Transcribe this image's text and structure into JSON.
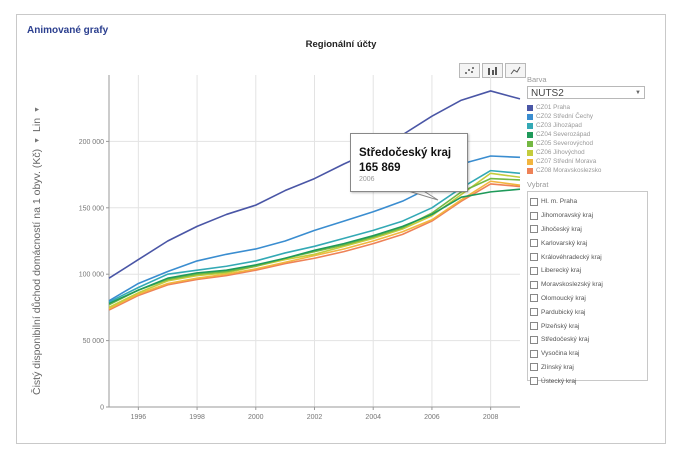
{
  "app_title": "Animované grafy",
  "chart_data": {
    "type": "line",
    "title": "Regionální účty",
    "ylabel": "Čistý disponibilní důchod domácností na 1 obyv. (Kč)",
    "yscale_label": "Lin",
    "xlim": [
      1995,
      2009
    ],
    "ylim": [
      0,
      250000
    ],
    "yticks": [
      0,
      50000,
      100000,
      150000,
      200000
    ],
    "ytick_labels": [
      "0",
      "50 000",
      "100 000",
      "150 000",
      "200 000"
    ],
    "xticks": [
      1996,
      1998,
      2000,
      2002,
      2004,
      2006,
      2008
    ],
    "x": [
      1995,
      1996,
      1997,
      1998,
      1999,
      2000,
      2001,
      2002,
      2003,
      2004,
      2005,
      2006,
      2007,
      2008,
      2009
    ],
    "series": [
      {
        "name": "CZ01 Praha",
        "color": "#4a56a6",
        "values": [
          97000,
          111000,
          125000,
          136000,
          145000,
          152000,
          163000,
          172000,
          183000,
          193000,
          205000,
          219000,
          231000,
          238000,
          232000
        ]
      },
      {
        "name": "CZ02 Střední Čechy",
        "color": "#3a8dd0",
        "values": [
          80000,
          93000,
          102000,
          110000,
          115000,
          119000,
          125000,
          133000,
          140000,
          147000,
          155000,
          166000,
          183000,
          189000,
          188000
        ]
      },
      {
        "name": "CZ03 Jihozápad",
        "color": "#33a9b5",
        "values": [
          79000,
          90000,
          100000,
          103000,
          106000,
          110000,
          116000,
          121000,
          127000,
          133000,
          140000,
          150000,
          165000,
          178000,
          176000
        ]
      },
      {
        "name": "CZ04 Severozápad",
        "color": "#1f9a5a",
        "values": [
          78000,
          88000,
          97000,
          101000,
          103000,
          107000,
          112000,
          118000,
          123000,
          129000,
          136000,
          145000,
          158000,
          162000,
          164000
        ]
      },
      {
        "name": "CZ05 Severovýchod",
        "color": "#74b843",
        "values": [
          77000,
          88000,
          96000,
          100000,
          102000,
          106000,
          112000,
          117000,
          122000,
          128000,
          135000,
          146000,
          162000,
          172000,
          171000
        ]
      },
      {
        "name": "CZ06 Jihovýchod",
        "color": "#c4cc3c",
        "values": [
          75000,
          86000,
          95000,
          99000,
          101000,
          106000,
          111000,
          115000,
          121000,
          127000,
          134000,
          144000,
          160000,
          176000,
          173000
        ]
      },
      {
        "name": "CZ07 Střední Morava",
        "color": "#f2b53e",
        "values": [
          74000,
          85000,
          93000,
          97000,
          100000,
          104000,
          109000,
          114000,
          119000,
          125000,
          132000,
          141000,
          156000,
          170000,
          167000
        ]
      },
      {
        "name": "CZ08 Moravskoslezsko",
        "color": "#ee8257",
        "values": [
          73000,
          84000,
          92000,
          96000,
          99000,
          103000,
          108000,
          112000,
          117000,
          123000,
          130000,
          140000,
          155000,
          168000,
          166000
        ]
      }
    ],
    "highlight": {
      "series_index": 1,
      "x": 2006,
      "y": 165869
    },
    "tooltip": {
      "title": "Středočeský kraj",
      "value": "165 869",
      "year": "2006"
    }
  },
  "toolbar": {
    "icons": [
      "scatter-chart-icon",
      "bar-chart-icon",
      "line-chart-icon"
    ]
  },
  "side_panel": {
    "color_caption": "Barva",
    "color_select_value": "NUTS2",
    "select_caption": "Vybrat",
    "regions": [
      "Hl. m. Praha",
      "Jihomoravský kraj",
      "Jihočeský kraj",
      "Karlovarský kraj",
      "Královéhradecký kraj",
      "Liberecký kraj",
      "Moravskoslezský kraj",
      "Olomoucký kraj",
      "Pardubický kraj",
      "Plzeňský kraj",
      "Středočeský kraj",
      "Vysočina kraj",
      "Zlínský kraj",
      "Ústecký kraj"
    ]
  },
  "colors": {
    "axis": "#9a9a9a",
    "grid": "#e3e3e3",
    "highlight": "#2a90d8"
  }
}
